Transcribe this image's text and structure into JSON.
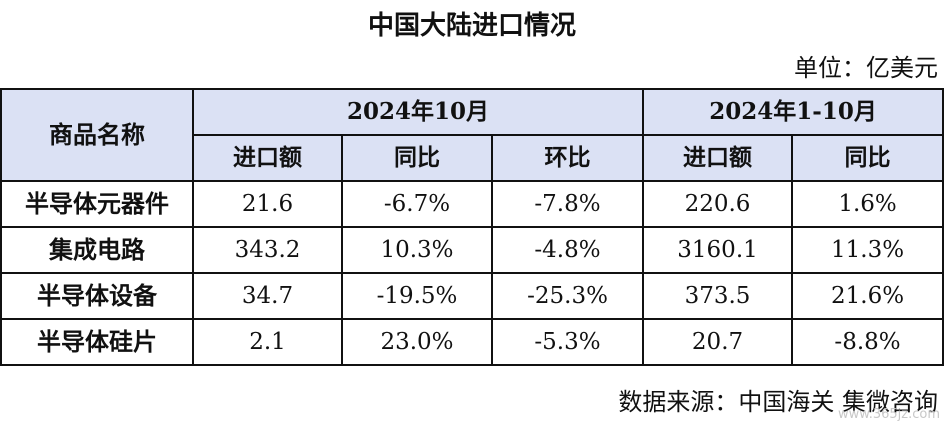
{
  "title": "中国大陆进口情况",
  "unit": "单位：亿美元",
  "table": {
    "corner_label": "商品名称",
    "period_1": "2024年10月",
    "period_2": "2024年1-10月",
    "subheaders": [
      "进口额",
      "同比",
      "环比",
      "进口额",
      "同比"
    ],
    "rows": [
      {
        "name": "半导体元器件",
        "cells": [
          "21.6",
          "-6.7%",
          "-7.8%",
          "220.6",
          "1.6%"
        ]
      },
      {
        "name": "集成电路",
        "cells": [
          "343.2",
          "10.3%",
          "-4.8%",
          "3160.1",
          "11.3%"
        ]
      },
      {
        "name": "半导体设备",
        "cells": [
          "34.7",
          "-19.5%",
          "-25.3%",
          "373.5",
          "21.6%"
        ]
      },
      {
        "name": "半导体硅片",
        "cells": [
          "2.1",
          "23.0%",
          "-5.3%",
          "20.7",
          "-8.8%"
        ]
      }
    ]
  },
  "source": "数据来源：中国海关 集微咨询",
  "watermark": "www.365jz.com"
}
